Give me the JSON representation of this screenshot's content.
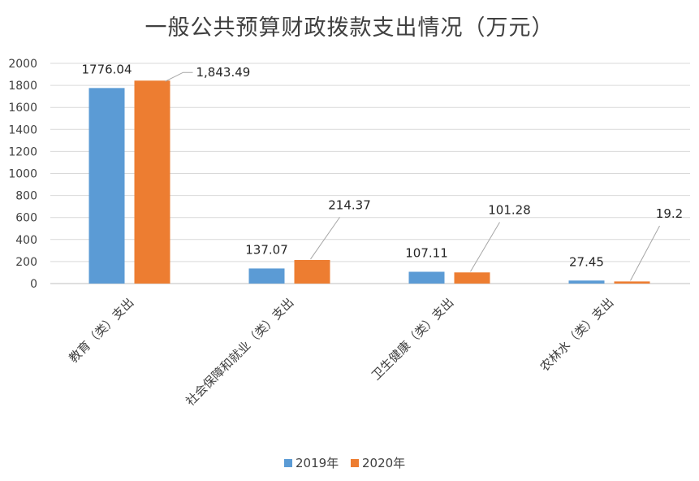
{
  "chart_data": {
    "type": "bar",
    "title": "一般公共预算财政拨款支出情况（万元）",
    "categories": [
      "教育（类）支出",
      "社会保障和就业（类）支出",
      "卫生健康（类）支出",
      "农林水（类）支出"
    ],
    "series": [
      {
        "name": "2019年",
        "color": "#5B9BD5",
        "values": [
          1776.04,
          137.07,
          107.11,
          27.45
        ],
        "labels": [
          "1776.04",
          "137.07",
          "107.11",
          "27.45"
        ]
      },
      {
        "name": "2020年",
        "color": "#ED7D31",
        "values": [
          1843.49,
          214.37,
          101.28,
          19.2
        ],
        "labels": [
          "1,843.49",
          "214.37",
          "101.28",
          "19.2"
        ]
      }
    ],
    "ylim": [
      0,
      2000
    ],
    "yticks": [
      0,
      200,
      400,
      600,
      800,
      1000,
      1200,
      1400,
      1600,
      1800,
      2000
    ],
    "grid": true,
    "legend": "bottom"
  }
}
